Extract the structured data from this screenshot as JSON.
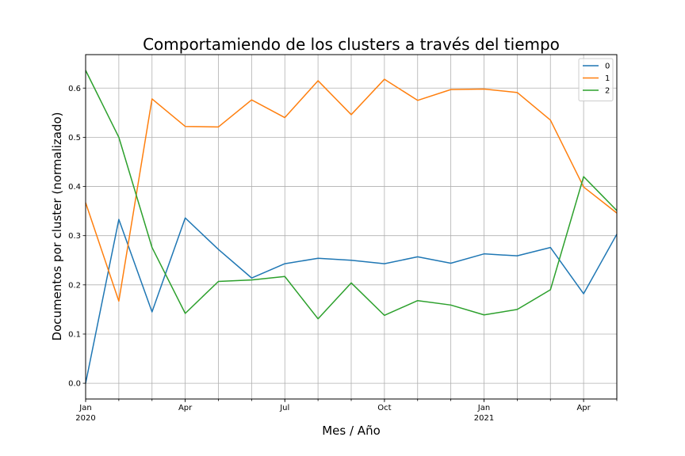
{
  "chart_data": {
    "type": "line",
    "title": "Comportamiendo de los clusters a través del tiempo",
    "xlabel": "Mes / Año",
    "ylabel": "Documentos por cluster (normalizado)",
    "x": [
      "2020-01",
      "2020-02",
      "2020-03",
      "2020-04",
      "2020-05",
      "2020-06",
      "2020-07",
      "2020-08",
      "2020-09",
      "2020-10",
      "2020-11",
      "2020-12",
      "2021-01",
      "2021-02",
      "2021-03",
      "2021-04",
      "2021-05"
    ],
    "x_ticks": [
      {
        "x": "2020-01",
        "label": "Jan",
        "sublabel": "2020"
      },
      {
        "x": "2020-04",
        "label": "Apr",
        "sublabel": ""
      },
      {
        "x": "2020-07",
        "label": "Jul",
        "sublabel": ""
      },
      {
        "x": "2020-10",
        "label": "Oct",
        "sublabel": ""
      },
      {
        "x": "2021-01",
        "label": "Jan",
        "sublabel": "2021"
      },
      {
        "x": "2021-04",
        "label": "Apr",
        "sublabel": ""
      }
    ],
    "ylim": [
      -0.032,
      0.668
    ],
    "y_ticks": [
      0.0,
      0.1,
      0.2,
      0.3,
      0.4,
      0.5,
      0.6
    ],
    "y_tick_labels": [
      "0.0",
      "0.1",
      "0.2",
      "0.3",
      "0.4",
      "0.5",
      "0.6"
    ],
    "grid": true,
    "legend_position": "top-right",
    "series": [
      {
        "name": "0",
        "color": "#1f77b4",
        "values": [
          0.0,
          0.333,
          0.145,
          0.336,
          0.272,
          0.214,
          0.243,
          0.254,
          0.25,
          0.243,
          0.257,
          0.244,
          0.263,
          0.259,
          0.276,
          0.182,
          0.303
        ]
      },
      {
        "name": "1",
        "color": "#ff7f0e",
        "values": [
          0.367,
          0.167,
          0.578,
          0.522,
          0.521,
          0.576,
          0.54,
          0.615,
          0.546,
          0.618,
          0.575,
          0.597,
          0.598,
          0.591,
          0.535,
          0.399,
          0.346
        ]
      },
      {
        "name": "2",
        "color": "#2ca02c",
        "values": [
          0.636,
          0.5,
          0.276,
          0.142,
          0.207,
          0.21,
          0.217,
          0.131,
          0.204,
          0.138,
          0.168,
          0.159,
          0.139,
          0.15,
          0.19,
          0.42,
          0.351
        ]
      }
    ]
  }
}
